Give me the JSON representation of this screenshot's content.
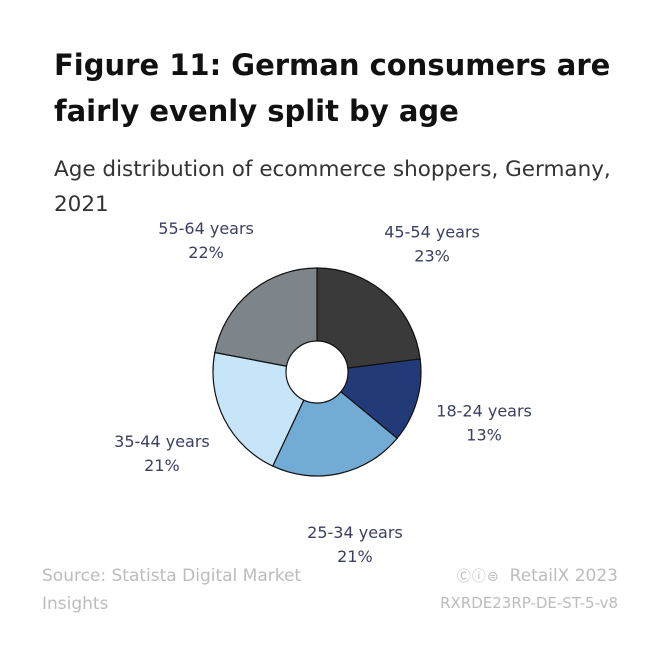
{
  "title": "Figure 11: German consumers are fairly evenly split by age",
  "subtitle": "Age distribution of ecommerce shoppers, Germany, 2021",
  "chart_data": {
    "type": "pie",
    "donut": true,
    "start": "top",
    "direction": "clockwise",
    "slices": [
      {
        "label": "45-54 years",
        "value": 23,
        "value_label": "23%",
        "color": "#3a3a3a"
      },
      {
        "label": "18-24 years",
        "value": 13,
        "value_label": "13%",
        "color": "#233a78"
      },
      {
        "label": "25-34 years",
        "value": 21,
        "value_label": "21%",
        "color": "#72abd4"
      },
      {
        "label": "35-44 years",
        "value": 21,
        "value_label": "21%",
        "color": "#c6e5f8"
      },
      {
        "label": "55-64 years",
        "value": 22,
        "value_label": "22%",
        "color": "#7d858a"
      }
    ]
  },
  "footer": {
    "source": "Source: Statista Digital Market Insights",
    "license_icons": "creative-commons-by-nd-icon",
    "brand": "RetailX 2023",
    "code": "RXRDE23RP-DE-ST-5-v8"
  }
}
